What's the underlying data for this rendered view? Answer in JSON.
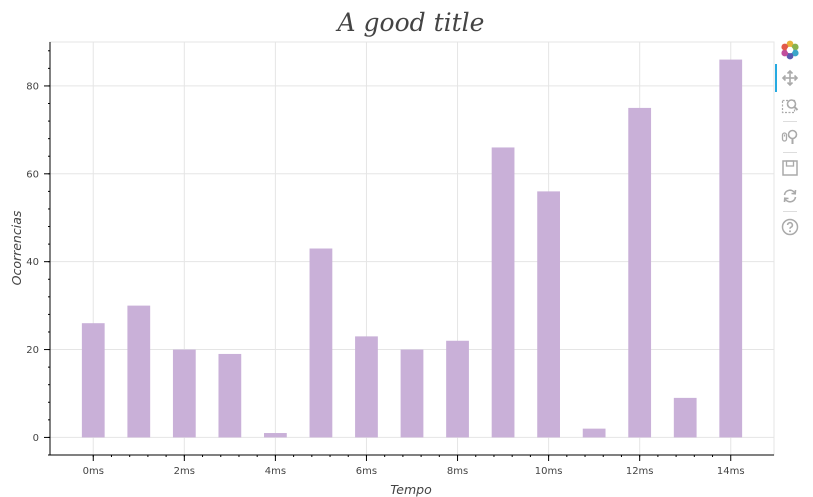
{
  "chart_data": {
    "type": "bar",
    "title": "A good title",
    "xlabel": "Tempo",
    "ylabel": "Ocorrencias",
    "x": [
      0,
      1,
      2,
      3,
      4,
      5,
      6,
      7,
      8,
      9,
      10,
      11,
      12,
      13,
      14
    ],
    "values": [
      26,
      30,
      20,
      19,
      1,
      43,
      23,
      20,
      22,
      66,
      56,
      2,
      75,
      9,
      86
    ],
    "bar_width": 0.5,
    "xlim": [
      -0.95,
      14.95
    ],
    "ylim": [
      -4,
      90
    ],
    "x_ticks": [
      0,
      2,
      4,
      6,
      8,
      10,
      12,
      14
    ],
    "x_tick_labels": [
      "0ms",
      "2ms",
      "4ms",
      "6ms",
      "8ms",
      "10ms",
      "12ms",
      "14ms"
    ],
    "y_ticks": [
      0,
      20,
      40,
      60,
      80
    ],
    "y_tick_labels": [
      "0",
      "20",
      "40",
      "60",
      "80"
    ],
    "grid": true,
    "bar_color": "#c9b0d8"
  },
  "toolbar": {
    "tools": [
      "bokeh-logo-icon",
      "pan-icon",
      "box-zoom-icon",
      "wheel-zoom-icon",
      "save-icon",
      "reset-icon",
      "help-icon"
    ],
    "active_tool": "pan-icon"
  }
}
